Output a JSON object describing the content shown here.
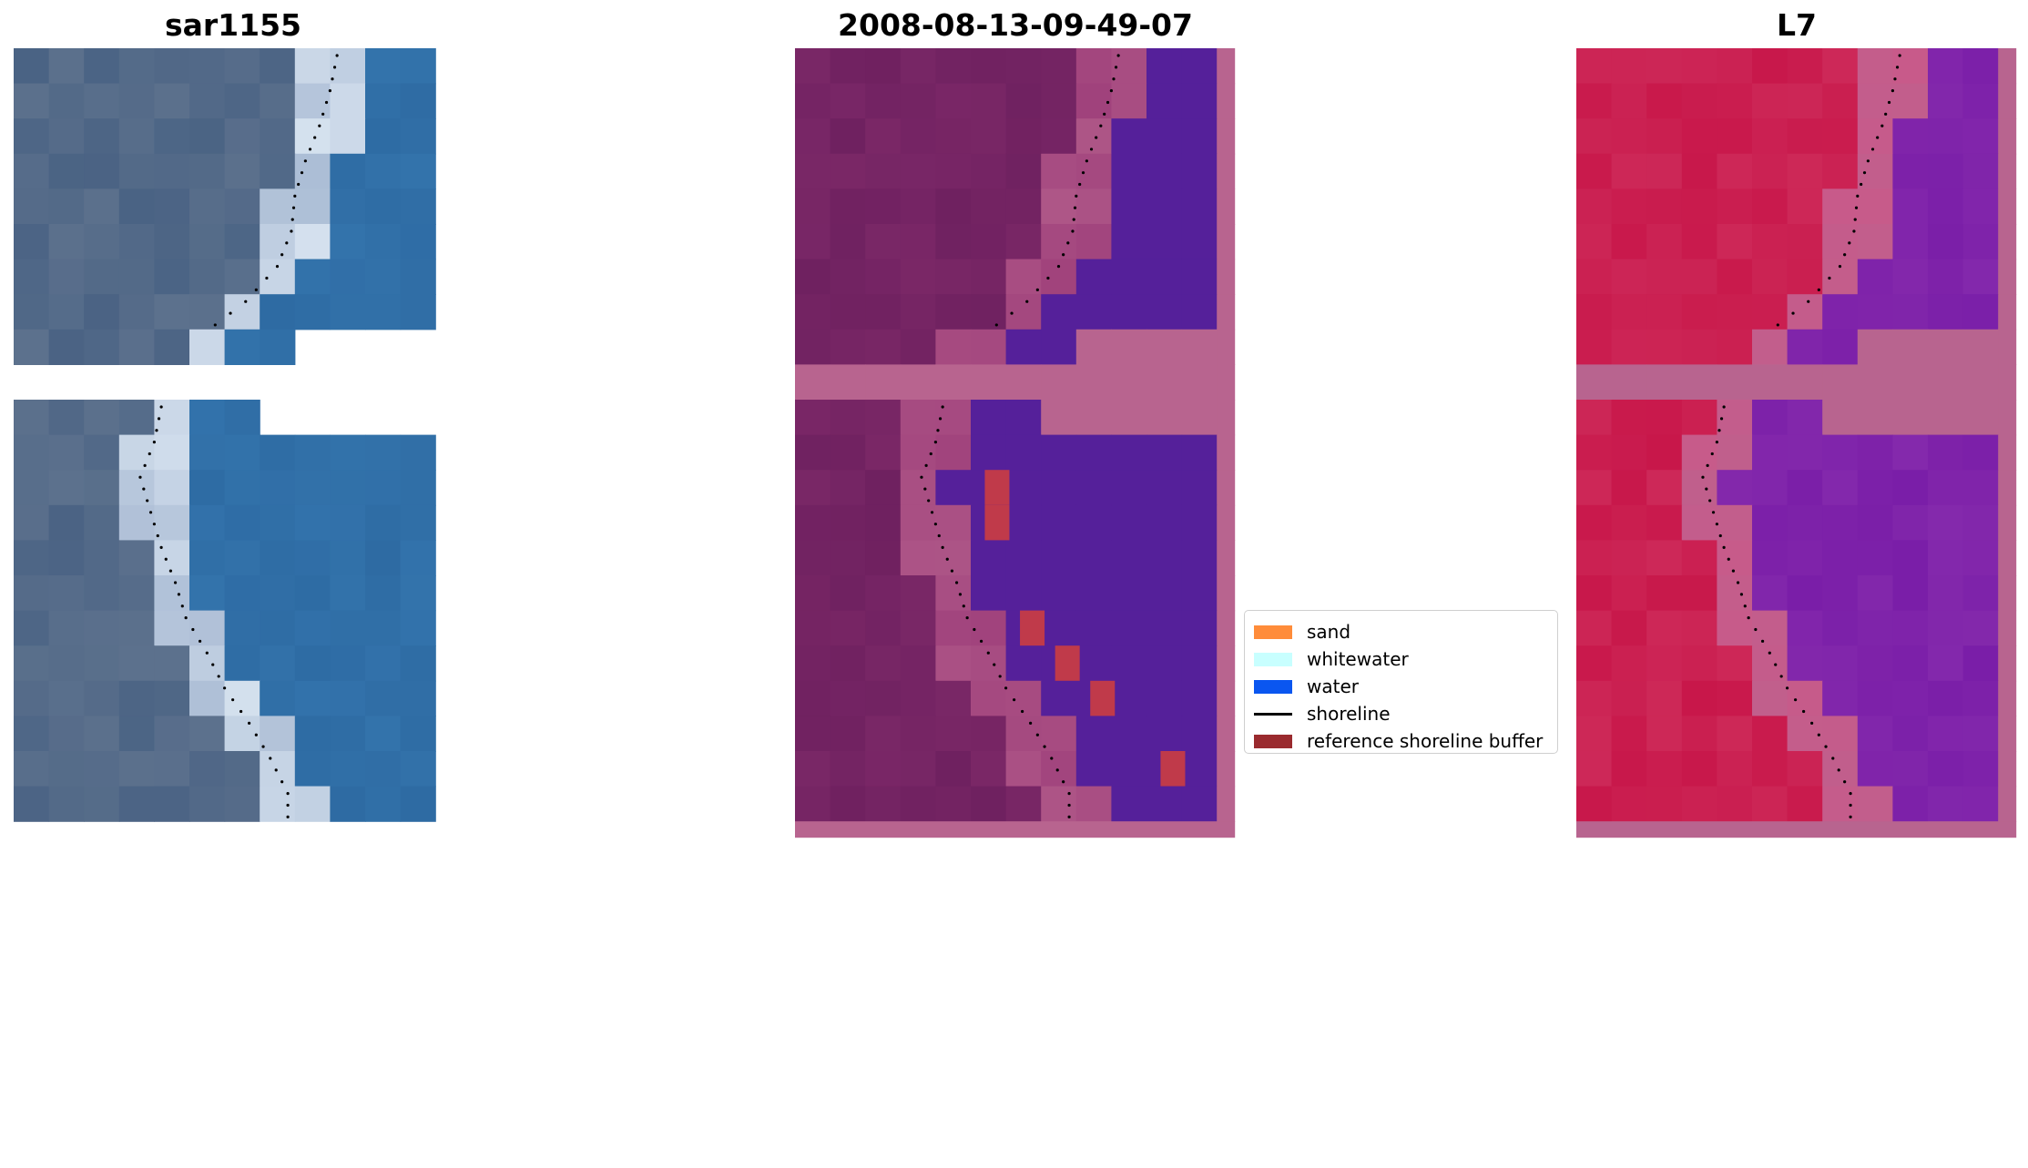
{
  "panels": [
    {
      "title": "sar1155",
      "style": "rgb"
    },
    {
      "title": "2008-08-13-09-49-07",
      "style": "classified"
    },
    {
      "title": "L7",
      "style": "ndwi"
    }
  ],
  "legend": {
    "items": [
      {
        "label": "sand",
        "color": "#ff8c3a",
        "kind": "patch"
      },
      {
        "label": "whitewater",
        "color": "#c8ffff",
        "kind": "patch"
      },
      {
        "label": "water",
        "color": "#0a56f0",
        "kind": "patch"
      },
      {
        "label": "shoreline",
        "color": "#000000",
        "kind": "line"
      },
      {
        "label": "reference shoreline buffer",
        "color": "#9a2a2e",
        "kind": "patch"
      }
    ]
  },
  "colors": {
    "nodata_overlay": "#b8648f",
    "rgb_land": "#4a6384",
    "rgb_water": "#2e6ba3",
    "rgb_whitewater": "#d8e4f0",
    "class_land": "#6f2160",
    "class_water": "#55209a",
    "class_buffer": "#c03a4a",
    "ndwi_land": "#c8174a",
    "ndwi_water": "#7a1ea8"
  }
}
